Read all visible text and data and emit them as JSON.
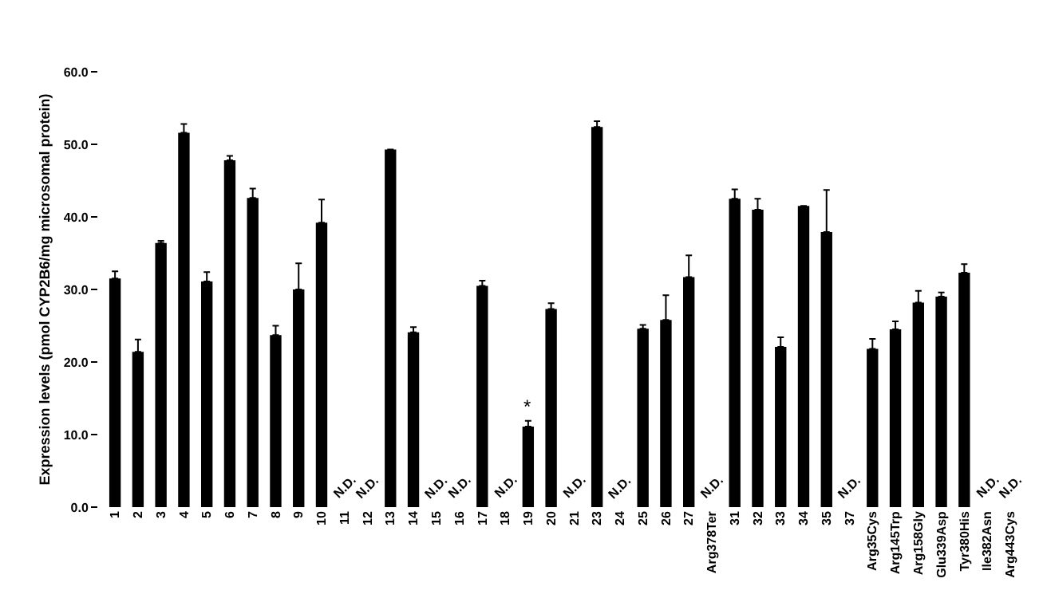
{
  "chart_data": {
    "type": "bar",
    "ylabel": "Expression levels (pmol CYP2B6/mg microsomal protein)",
    "categories": [
      "1",
      "2",
      "3",
      "4",
      "5",
      "6",
      "7",
      "8",
      "9",
      "10",
      "11",
      "12",
      "13",
      "14",
      "15",
      "16",
      "17",
      "18",
      "19",
      "20",
      "21",
      "23",
      "24",
      "25",
      "26",
      "27",
      "Arg378Ter",
      "31",
      "32",
      "33",
      "34",
      "35",
      "37",
      "Arg35Cys",
      "Arg145Trp",
      "Arg158Gly",
      "Glu339Asp",
      "Tyr380His",
      "Ile382Asn",
      "Arg443Cys"
    ],
    "values": [
      31.5,
      21.4,
      36.4,
      51.6,
      31.1,
      47.8,
      42.6,
      23.7,
      30.0,
      39.2,
      null,
      null,
      49.3,
      24.1,
      null,
      null,
      30.5,
      null,
      11.1,
      27.3,
      null,
      52.4,
      null,
      24.6,
      25.8,
      31.7,
      null,
      42.5,
      41.0,
      22.1,
      41.5,
      37.9,
      null,
      21.8,
      24.5,
      28.2,
      29.0,
      32.3,
      null,
      null
    ],
    "errors": [
      [
        31.5,
        32.5
      ],
      [
        21.4,
        23.1
      ],
      [
        36.4,
        36.7
      ],
      [
        51.6,
        52.8
      ],
      [
        31.1,
        32.4
      ],
      [
        47.8,
        48.4
      ],
      [
        42.6,
        43.9
      ],
      [
        23.7,
        25.0
      ],
      [
        30.0,
        33.6
      ],
      [
        39.2,
        42.4
      ],
      null,
      null,
      null,
      [
        24.1,
        24.8
      ],
      null,
      null,
      [
        30.5,
        31.2
      ],
      null,
      [
        11.1,
        11.9
      ],
      [
        27.3,
        28.1
      ],
      null,
      [
        52.4,
        53.2
      ],
      null,
      [
        24.6,
        25.1
      ],
      [
        25.8,
        29.2
      ],
      [
        31.7,
        34.7
      ],
      null,
      [
        42.5,
        43.8
      ],
      [
        41.0,
        42.5
      ],
      [
        22.1,
        23.4
      ],
      null,
      [
        37.9,
        43.7
      ],
      null,
      [
        21.8,
        23.2
      ],
      [
        24.5,
        25.6
      ],
      [
        28.2,
        29.8
      ],
      [
        29.0,
        29.6
      ],
      [
        32.3,
        33.5
      ],
      null,
      null
    ],
    "color": "#000000",
    "ylim": [
      0,
      60
    ],
    "yticks": [
      {
        "value": 0,
        "label": "0.0"
      },
      {
        "value": 10,
        "label": "10.0"
      },
      {
        "value": 20,
        "label": "20.0"
      },
      {
        "value": 30,
        "label": "30.0"
      },
      {
        "value": 40,
        "label": "40.0"
      },
      {
        "value": 50,
        "label": "50.0"
      },
      {
        "value": 60,
        "label": "60.0"
      }
    ],
    "value_labels": [
      null,
      null,
      null,
      null,
      null,
      null,
      null,
      null,
      null,
      null,
      "N.D.",
      "N.D.",
      null,
      null,
      "N.D.",
      "N.D.",
      null,
      "N.D.",
      null,
      null,
      "N.D.",
      null,
      "N.D.",
      null,
      null,
      null,
      "N.D.",
      null,
      null,
      null,
      null,
      null,
      "N.D.",
      null,
      null,
      null,
      null,
      null,
      "N.D.",
      "N.D."
    ],
    "annotations": [
      {
        "text": "*",
        "x": "19",
        "y": 11.9
      }
    ]
  }
}
